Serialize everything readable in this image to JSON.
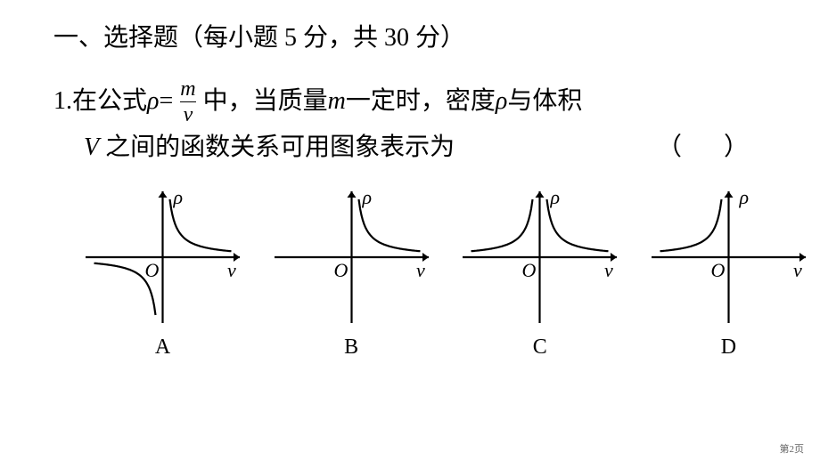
{
  "section": {
    "heading": "一、选择题（每小题 5 分，共 30 分）"
  },
  "question": {
    "number": "1. ",
    "text_a": "在公式 ",
    "rho": "ρ",
    "equals": " = ",
    "frac_num": "m",
    "frac_den": "v",
    "text_b": " 中，当质量 ",
    "var_m": "m",
    "text_c": " 一定时，密度 ",
    "var_rho2": "ρ",
    "text_d": " 与体积",
    "line2_a": "V",
    "line2_b": " 之间的函数关系可用图象表示为",
    "bracket": "（     ）"
  },
  "graphs": {
    "width": 185,
    "height": 160,
    "stroke": "#000000",
    "stroke_width": 2.2,
    "axis_label_y": "ρ",
    "axis_label_x": "v",
    "origin_label": "O",
    "options": [
      {
        "label": "A",
        "q1": true,
        "q3": true,
        "q2": false,
        "q4": false
      },
      {
        "label": "B",
        "q1": true,
        "q3": false,
        "q2": false,
        "q4": false
      },
      {
        "label": "C",
        "q1": true,
        "q3": false,
        "q2": true,
        "q4": false
      },
      {
        "label": "D",
        "q1": false,
        "q3": false,
        "q2": true,
        "q4": false
      }
    ]
  },
  "footer": {
    "page": "第2页"
  }
}
